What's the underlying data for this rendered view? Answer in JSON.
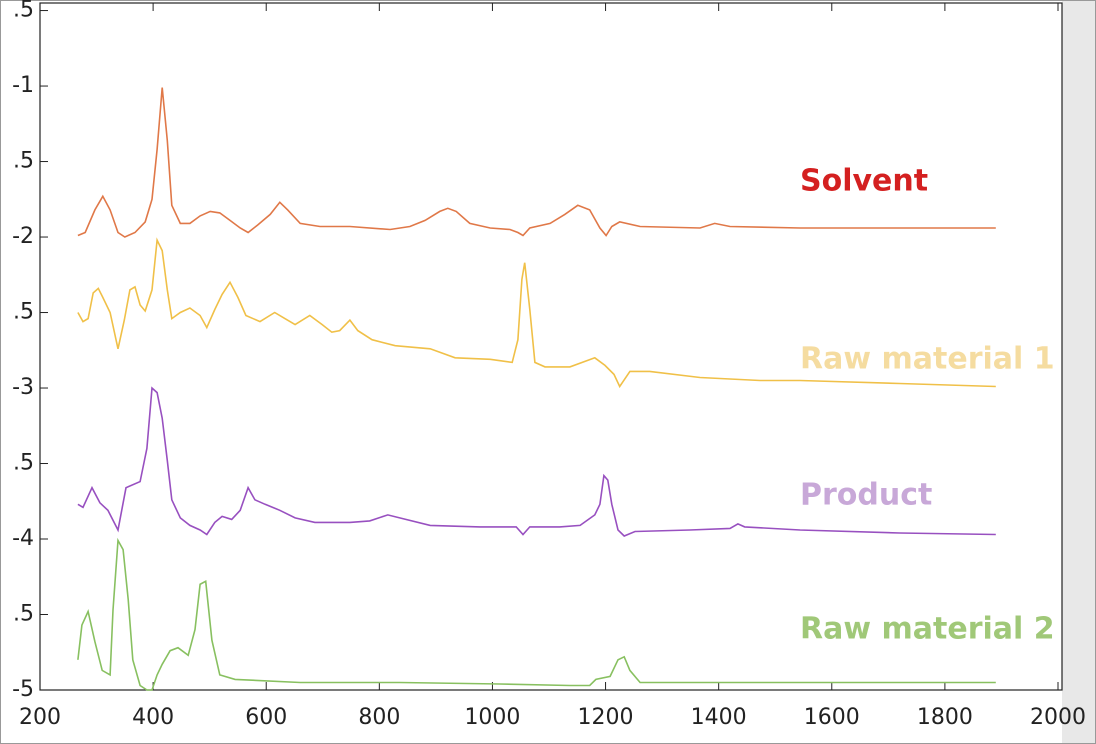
{
  "chart_data": {
    "type": "line",
    "xlim": [
      200,
      2000
    ],
    "xticks": [
      200,
      400,
      600,
      800,
      1000,
      1200,
      1400,
      1600,
      1800,
      2000
    ],
    "ylim": [
      -5,
      -0.45
    ],
    "yticks": [
      {
        "value": -0.5,
        "label": ".5"
      },
      -1,
      {
        "value": -1.5,
        "label": ".5"
      },
      -2,
      {
        "value": -2.5,
        "label": ".5"
      },
      -3,
      {
        "value": -3.5,
        "label": ".5"
      },
      -4,
      {
        "value": -4.5,
        "label": ".5"
      },
      -5
    ],
    "series": [
      {
        "name": "Solvent",
        "color": "#e07848",
        "label_color": "#d42020",
        "x": [
          267,
          280,
          297,
          311,
          324,
          338,
          350,
          368,
          386,
          398,
          407,
          416,
          425,
          433,
          448,
          465,
          483,
          501,
          518,
          536,
          554,
          568,
          585,
          607,
          624,
          638,
          660,
          695,
          748,
          819,
          854,
          881,
          907,
          921,
          936,
          960,
          996,
          1031,
          1045,
          1054,
          1066,
          1102,
          1128,
          1151,
          1172,
          1190,
          1201,
          1211,
          1225,
          1261,
          1367,
          1393,
          1420,
          1544,
          1720,
          1890
        ],
        "values": [
          -1.99,
          -1.97,
          -1.82,
          -1.73,
          -1.82,
          -1.97,
          -2.0,
          -1.97,
          -1.9,
          -1.75,
          -1.42,
          -1.01,
          -1.36,
          -1.79,
          -1.91,
          -1.91,
          -1.86,
          -1.83,
          -1.84,
          -1.89,
          -1.94,
          -1.97,
          -1.92,
          -1.85,
          -1.77,
          -1.82,
          -1.91,
          -1.93,
          -1.93,
          -1.95,
          -1.93,
          -1.89,
          -1.83,
          -1.81,
          -1.83,
          -1.91,
          -1.94,
          -1.95,
          -1.97,
          -1.99,
          -1.94,
          -1.91,
          -1.85,
          -1.79,
          -1.82,
          -1.94,
          -1.99,
          -1.93,
          -1.9,
          -1.93,
          -1.94,
          -1.91,
          -1.93,
          -1.94,
          -1.94,
          -1.94
        ]
      },
      {
        "name": "Raw material 1",
        "color": "#f0c048",
        "label_color": "#f5dca0",
        "x": [
          267,
          276,
          285,
          294,
          303,
          311,
          324,
          338,
          349,
          359,
          368,
          377,
          386,
          398,
          407,
          416,
          425,
          433,
          448,
          465,
          483,
          495,
          509,
          522,
          536,
          550,
          564,
          589,
          615,
          633,
          651,
          677,
          699,
          716,
          730,
          748,
          762,
          787,
          828,
          890,
          934,
          996,
          1035,
          1045,
          1052,
          1057,
          1066,
          1075,
          1093,
          1137,
          1181,
          1199,
          1215,
          1225,
          1243,
          1278,
          1367,
          1473,
          1544,
          1720,
          1890
        ],
        "values": [
          -2.5,
          -2.56,
          -2.54,
          -2.37,
          -2.34,
          -2.4,
          -2.5,
          -2.74,
          -2.55,
          -2.35,
          -2.33,
          -2.45,
          -2.49,
          -2.35,
          -2.02,
          -2.09,
          -2.35,
          -2.54,
          -2.5,
          -2.47,
          -2.52,
          -2.6,
          -2.48,
          -2.38,
          -2.3,
          -2.4,
          -2.52,
          -2.56,
          -2.5,
          -2.54,
          -2.58,
          -2.52,
          -2.58,
          -2.63,
          -2.62,
          -2.55,
          -2.62,
          -2.68,
          -2.72,
          -2.74,
          -2.8,
          -2.81,
          -2.83,
          -2.68,
          -2.28,
          -2.17,
          -2.48,
          -2.83,
          -2.86,
          -2.86,
          -2.8,
          -2.85,
          -2.91,
          -2.99,
          -2.89,
          -2.89,
          -2.93,
          -2.95,
          -2.95,
          -2.97,
          -2.99
        ]
      },
      {
        "name": "Product",
        "color": "#9850c0",
        "label_color": "#c8a8d8",
        "x": [
          267,
          276,
          292,
          306,
          320,
          338,
          352,
          377,
          389,
          398,
          407,
          416,
          425,
          433,
          448,
          465,
          483,
          495,
          509,
          522,
          539,
          554,
          568,
          580,
          598,
          624,
          651,
          686,
          748,
          783,
          815,
          836,
          890,
          978,
          1042,
          1054,
          1066,
          1119,
          1155,
          1181,
          1190,
          1197,
          1204,
          1211,
          1222,
          1233,
          1252,
          1349,
          1420,
          1434,
          1446,
          1544,
          1720,
          1890
        ],
        "values": [
          -3.77,
          -3.79,
          -3.66,
          -3.76,
          -3.81,
          -3.94,
          -3.66,
          -3.62,
          -3.4,
          -3.0,
          -3.03,
          -3.2,
          -3.48,
          -3.74,
          -3.86,
          -3.91,
          -3.94,
          -3.97,
          -3.89,
          -3.85,
          -3.87,
          -3.81,
          -3.66,
          -3.74,
          -3.77,
          -3.81,
          -3.86,
          -3.89,
          -3.89,
          -3.88,
          -3.84,
          -3.86,
          -3.91,
          -3.92,
          -3.92,
          -3.97,
          -3.92,
          -3.92,
          -3.91,
          -3.84,
          -3.77,
          -3.58,
          -3.61,
          -3.77,
          -3.94,
          -3.98,
          -3.95,
          -3.94,
          -3.93,
          -3.9,
          -3.92,
          -3.94,
          -3.96,
          -3.97
        ]
      },
      {
        "name": "Raw material 2",
        "color": "#88c060",
        "label_color": "#a0c878",
        "x": [
          267,
          274,
          285,
          297,
          310,
          324,
          329,
          338,
          347,
          356,
          364,
          377,
          389,
          398,
          407,
          416,
          430,
          444,
          462,
          474,
          483,
          493,
          504,
          518,
          545,
          660,
          836,
          1013,
          1137,
          1172,
          1183,
          1208,
          1222,
          1233,
          1243,
          1261,
          1367,
          1544,
          1720,
          1890
        ],
        "values": [
          -4.8,
          -4.57,
          -4.48,
          -4.68,
          -4.87,
          -4.9,
          -4.47,
          -4.01,
          -4.07,
          -4.4,
          -4.8,
          -4.97,
          -5.0,
          -5.0,
          -4.9,
          -4.83,
          -4.74,
          -4.72,
          -4.77,
          -4.6,
          -4.3,
          -4.28,
          -4.67,
          -4.9,
          -4.93,
          -4.95,
          -4.95,
          -4.96,
          -4.97,
          -4.97,
          -4.93,
          -4.91,
          -4.8,
          -4.78,
          -4.87,
          -4.95,
          -4.95,
          -4.95,
          -4.95,
          -4.95
        ]
      }
    ]
  }
}
